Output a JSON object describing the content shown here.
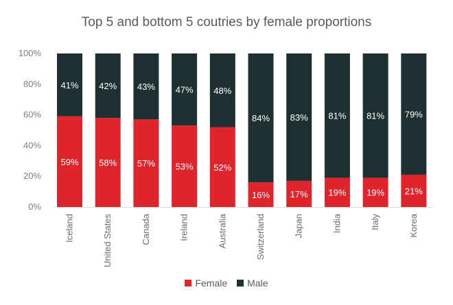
{
  "chart_data": {
    "type": "bar",
    "stacked": true,
    "title": "Top 5 and bottom 5 coutries by female proportions",
    "xlabel": "",
    "ylabel": "",
    "ylim": [
      0,
      100
    ],
    "y_ticks": [
      "0%",
      "20%",
      "40%",
      "60%",
      "80%",
      "100%"
    ],
    "categories": [
      "Iceland",
      "United States",
      "Canada",
      "Ireland",
      "Australia",
      "Switzerland",
      "Japan",
      "India",
      "Italy",
      "Korea"
    ],
    "series": [
      {
        "name": "Female",
        "color": "#e0242b",
        "values": [
          59,
          58,
          57,
          53,
          52,
          16,
          17,
          19,
          19,
          21
        ],
        "labels": [
          "59%",
          "58%",
          "57%",
          "53%",
          "52%",
          "16%",
          "17%",
          "19%",
          "19%",
          "21%"
        ]
      },
      {
        "name": "Male",
        "color": "#1f3033",
        "values": [
          41,
          42,
          43,
          47,
          48,
          84,
          83,
          81,
          81,
          79
        ],
        "labels": [
          "41%",
          "42%",
          "43%",
          "47%",
          "48%",
          "84%",
          "83%",
          "81%",
          "81%",
          "79%"
        ]
      }
    ],
    "legend_position": "bottom",
    "grid": false
  }
}
